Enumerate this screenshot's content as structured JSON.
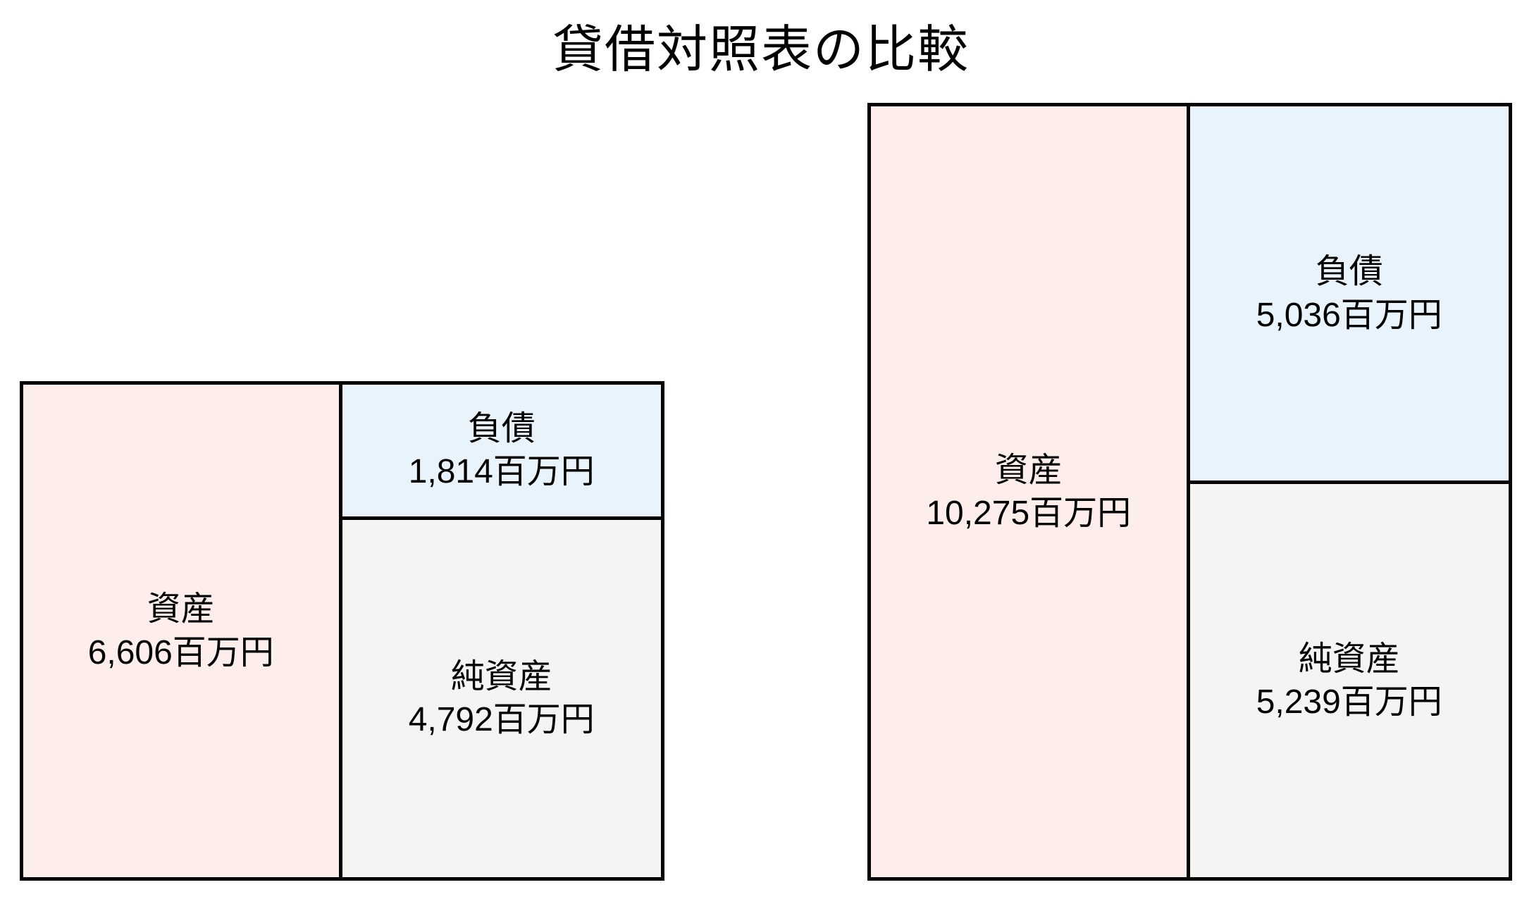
{
  "page": {
    "background": "#ffffff"
  },
  "colors": {
    "assets_fill": "#fdeeeb",
    "liabilities_fill": "#e9f3fc",
    "net_assets_fill": "#f4f4f3",
    "border": "#000000",
    "text": "#000000"
  },
  "chart_data": {
    "type": "bar",
    "subtype": "balance-sheet-box-comparison",
    "title": "貸借対照表の比較",
    "unit": "百万円",
    "legend": "none",
    "axes": "none",
    "layout_hint": "two box-style balance sheets, bottom-aligned; box heights proportional to total assets; left half of each box = assets, right half split vertically into liabilities (top, blue) and net assets (bottom, gray)",
    "charts": [
      {
        "assets": {
          "label": "資産",
          "value": 6606,
          "display": "6,606百万円"
        },
        "liabilities": {
          "label": "負債",
          "value": 1814,
          "display": "1,814百万円"
        },
        "net_assets": {
          "label": "純資産",
          "value": 4792,
          "display": "4,792百万円"
        }
      },
      {
        "assets": {
          "label": "資産",
          "value": 10275,
          "display": "10,275百万円"
        },
        "liabilities": {
          "label": "負債",
          "value": 5036,
          "display": "5,036百万円"
        },
        "net_assets": {
          "label": "純資産",
          "value": 5239,
          "display": "5,239百万円"
        }
      }
    ]
  }
}
